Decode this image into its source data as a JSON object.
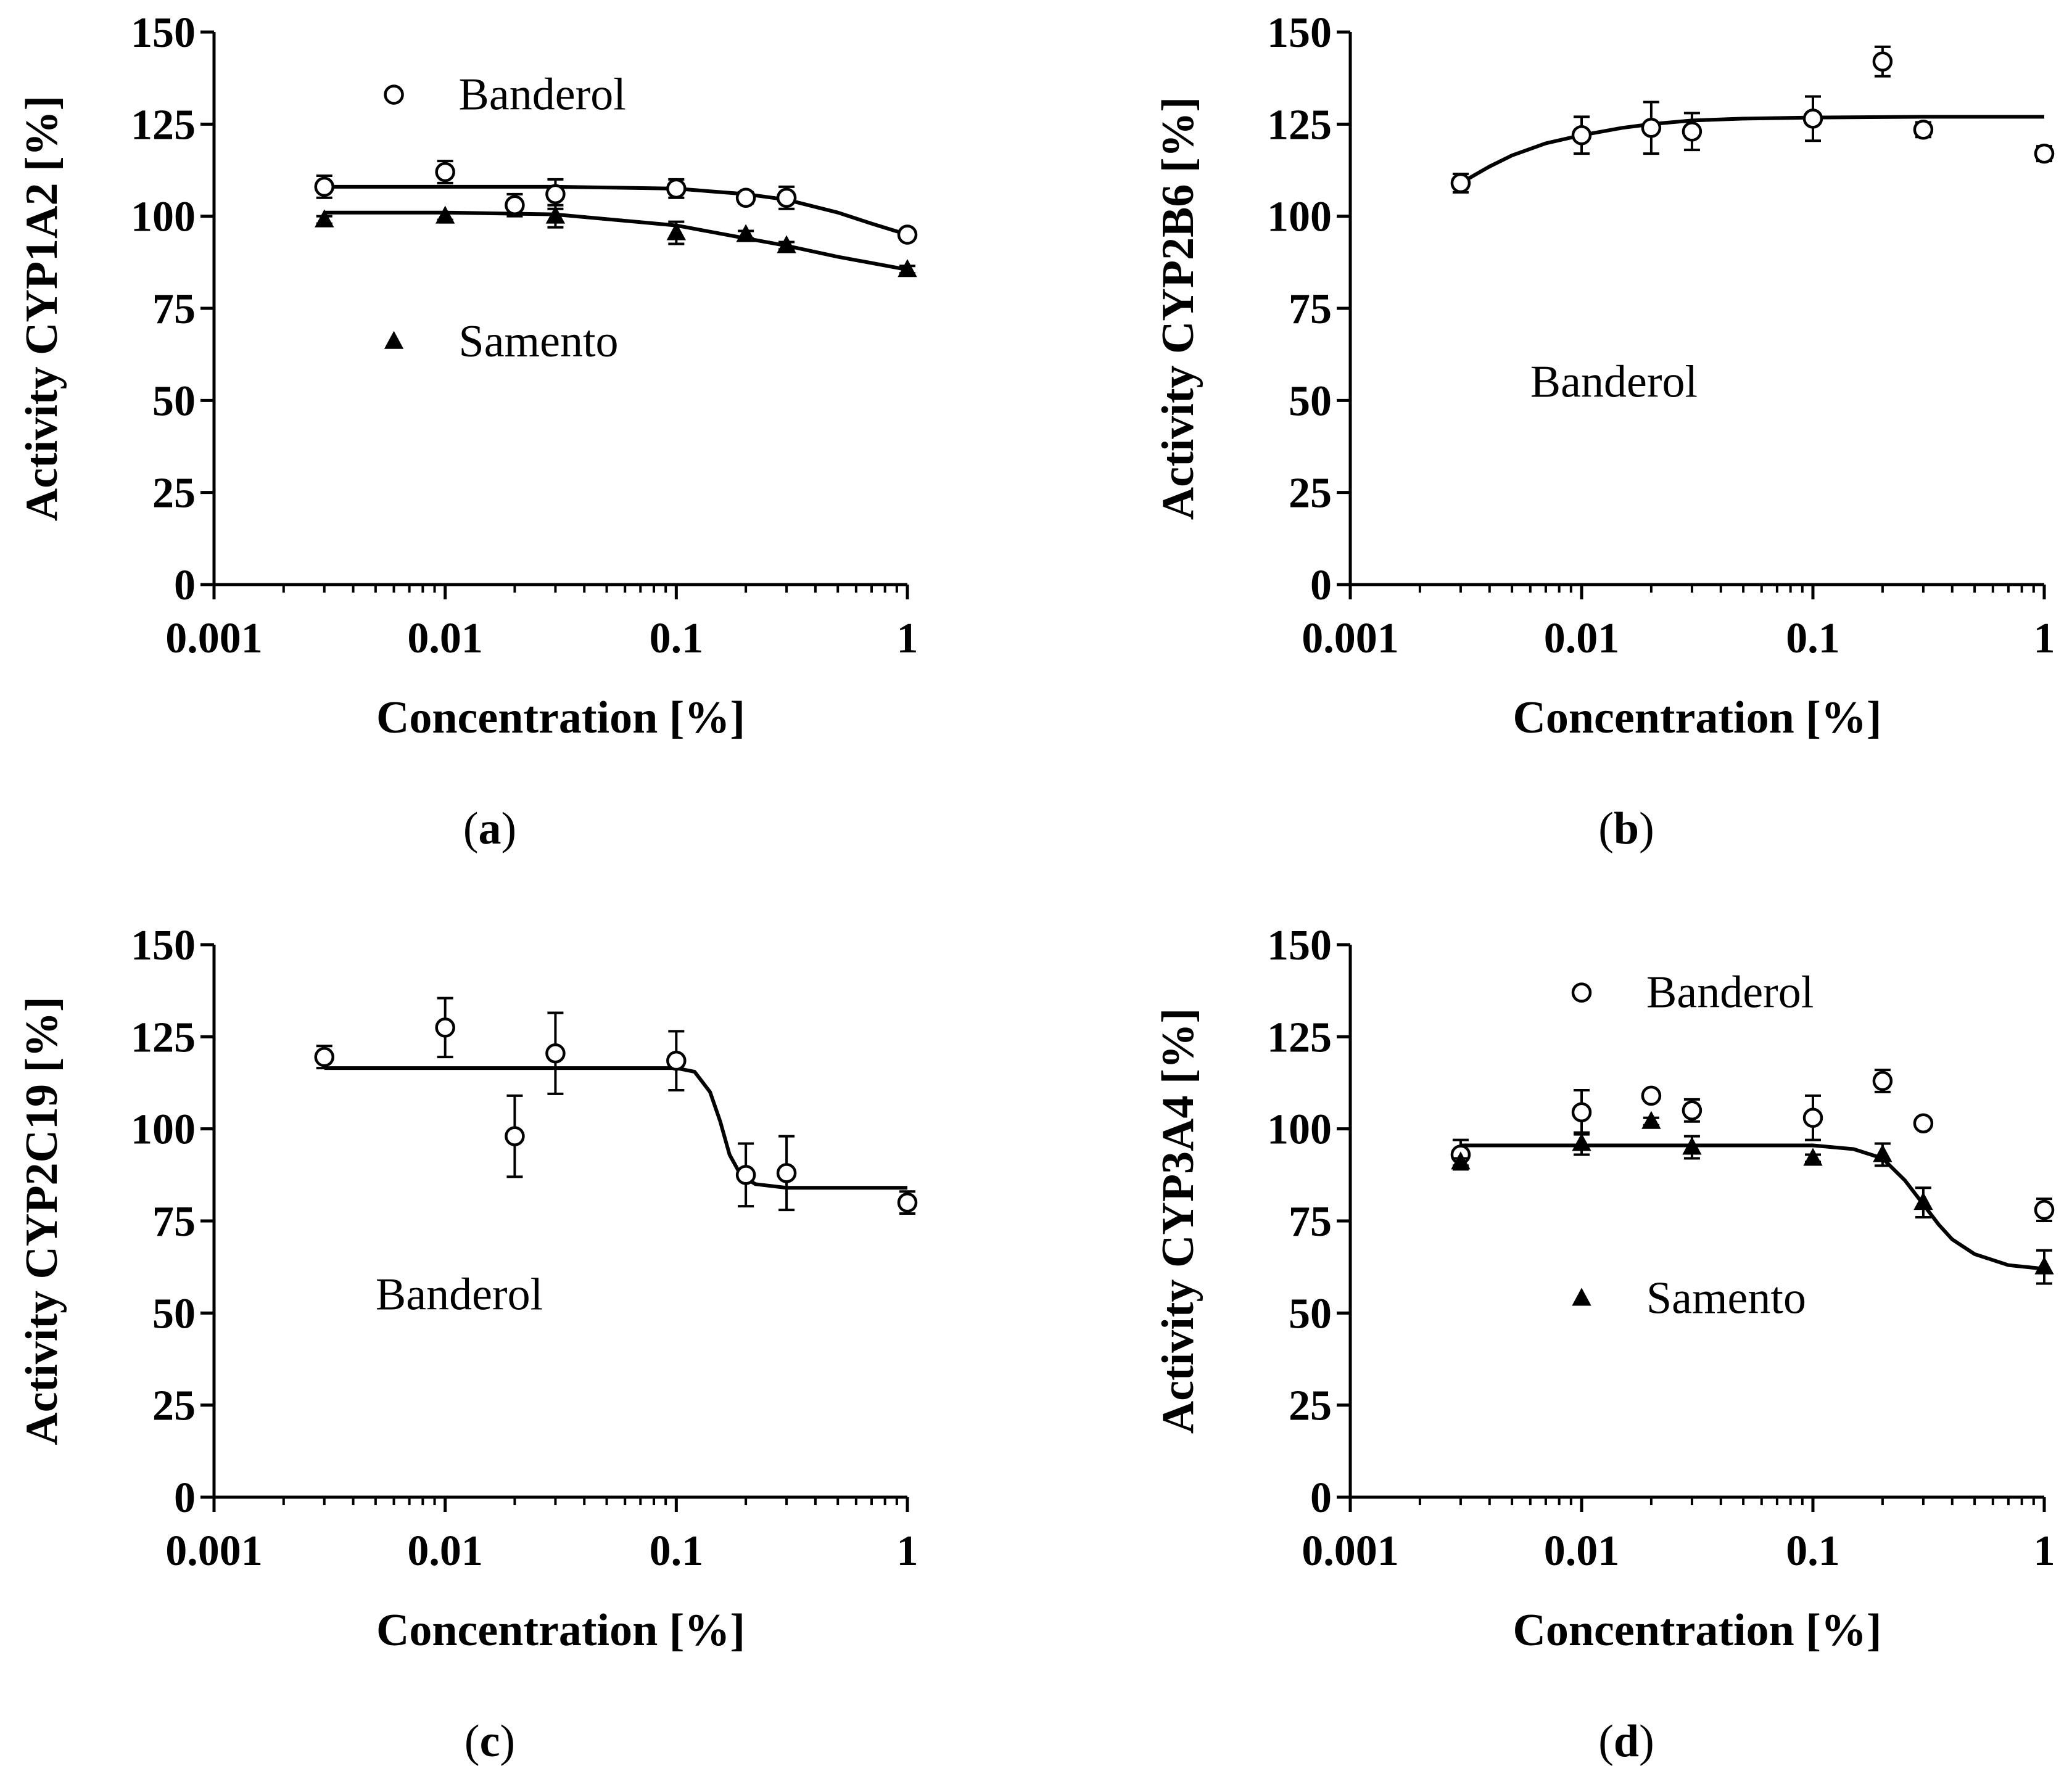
{
  "chart_data": [
    {
      "type": "scatter",
      "panel_label": "a",
      "xlabel": "Concentration [%]",
      "ylabel": "Activity CYP1A2 [%]",
      "xscale": "log",
      "xlim": [
        0.001,
        1
      ],
      "ylim": [
        0,
        150
      ],
      "x_ticks": [
        "0.001",
        "0.01",
        "0.1",
        "1"
      ],
      "y_ticks": [
        "0",
        "25",
        "50",
        "75",
        "100",
        "125",
        "150"
      ],
      "grid": false,
      "series": [
        {
          "name": "Banderol",
          "marker": "open-circle",
          "points": [
            {
              "x": 0.003,
              "y": 108,
              "err": 3
            },
            {
              "x": 0.01,
              "y": 112,
              "err": 3
            },
            {
              "x": 0.02,
              "y": 103,
              "err": 3
            },
            {
              "x": 0.03,
              "y": 106,
              "err": 4
            },
            {
              "x": 0.1,
              "y": 107.5,
              "err": 2.5
            },
            {
              "x": 0.2,
              "y": 105,
              "err": 1.5
            },
            {
              "x": 0.3,
              "y": 105,
              "err": 3
            },
            {
              "x": 1,
              "y": 95,
              "err": 1
            }
          ],
          "fit": [
            [
              0.003,
              108
            ],
            [
              0.01,
              108
            ],
            [
              0.03,
              108
            ],
            [
              0.1,
              107.5
            ],
            [
              0.2,
              106
            ],
            [
              0.3,
              104.5
            ],
            [
              0.5,
              101
            ],
            [
              0.7,
              98
            ],
            [
              1,
              95
            ]
          ]
        },
        {
          "name": "Samento",
          "marker": "filled-triangle",
          "points": [
            {
              "x": 0.003,
              "y": 99,
              "err": 1
            },
            {
              "x": 0.01,
              "y": 100,
              "err": 1
            },
            {
              "x": 0.03,
              "y": 100,
              "err": 3
            },
            {
              "x": 0.1,
              "y": 95.5,
              "err": 3
            },
            {
              "x": 0.2,
              "y": 95,
              "err": 1
            },
            {
              "x": 0.3,
              "y": 92,
              "err": 1
            },
            {
              "x": 1,
              "y": 85.5,
              "err": 1
            }
          ],
          "fit": [
            [
              0.003,
              101
            ],
            [
              0.01,
              101
            ],
            [
              0.03,
              100.5
            ],
            [
              0.1,
              97.5
            ],
            [
              0.2,
              94
            ],
            [
              0.3,
              92
            ],
            [
              0.5,
              89
            ],
            [
              1,
              85.5
            ]
          ]
        }
      ],
      "legend": [
        {
          "series": 0,
          "x": 0.006,
          "y": 133
        },
        {
          "series": 1,
          "x": 0.006,
          "y": 66
        }
      ]
    },
    {
      "type": "scatter",
      "panel_label": "b",
      "xlabel": "Concentration [%]",
      "ylabel": "Activity CYP2B6 [%]",
      "xscale": "log",
      "xlim": [
        0.001,
        1
      ],
      "ylim": [
        0,
        150
      ],
      "x_ticks": [
        "0.001",
        "0.01",
        "0.1",
        "1"
      ],
      "y_ticks": [
        "0",
        "25",
        "50",
        "75",
        "100",
        "125",
        "150"
      ],
      "grid": false,
      "series": [
        {
          "name": "Banderol",
          "marker": "open-circle",
          "points": [
            {
              "x": 0.003,
              "y": 109,
              "err": 2.5
            },
            {
              "x": 0.01,
              "y": 122,
              "err": 5
            },
            {
              "x": 0.02,
              "y": 124,
              "err": 7
            },
            {
              "x": 0.03,
              "y": 123,
              "err": 5
            },
            {
              "x": 0.1,
              "y": 126.5,
              "err": 6
            },
            {
              "x": 0.2,
              "y": 142,
              "err": 4
            },
            {
              "x": 0.3,
              "y": 123.5,
              "err": 2
            },
            {
              "x": 1,
              "y": 117,
              "err": 2
            }
          ],
          "fit": [
            [
              0.003,
              109
            ],
            [
              0.004,
              113.5
            ],
            [
              0.005,
              116.5
            ],
            [
              0.007,
              119.8
            ],
            [
              0.01,
              122
            ],
            [
              0.015,
              124
            ],
            [
              0.02,
              125
            ],
            [
              0.03,
              126
            ],
            [
              0.05,
              126.5
            ],
            [
              0.1,
              126.8
            ],
            [
              0.3,
              127
            ],
            [
              1,
              127
            ]
          ]
        }
      ],
      "legend": [
        {
          "series": 0,
          "x": 0.006,
          "y": 55,
          "text_only": true
        }
      ]
    },
    {
      "type": "scatter",
      "panel_label": "c",
      "xlabel": "Concentration [%]",
      "ylabel": "Activity CYP2C19 [%]",
      "xscale": "log",
      "xlim": [
        0.001,
        1
      ],
      "ylim": [
        0,
        150
      ],
      "x_ticks": [
        "0.001",
        "0.01",
        "0.1",
        "1"
      ],
      "y_ticks": [
        "0",
        "25",
        "50",
        "75",
        "100",
        "125",
        "150"
      ],
      "grid": false,
      "series": [
        {
          "name": "Banderol",
          "marker": "open-circle",
          "points": [
            {
              "x": 0.003,
              "y": 119.5,
              "err": 3
            },
            {
              "x": 0.01,
              "y": 127.5,
              "err": 8
            },
            {
              "x": 0.02,
              "y": 98,
              "err": 11
            },
            {
              "x": 0.03,
              "y": 120.5,
              "err": 11
            },
            {
              "x": 0.1,
              "y": 118.5,
              "err": 8
            },
            {
              "x": 0.2,
              "y": 87.5,
              "err": 8.5
            },
            {
              "x": 0.3,
              "y": 88,
              "err": 10
            },
            {
              "x": 1,
              "y": 80,
              "err": 3
            }
          ],
          "fit": [
            [
              0.003,
              116.5
            ],
            [
              0.1,
              116.5
            ],
            [
              0.12,
              115.5
            ],
            [
              0.14,
              110
            ],
            [
              0.155,
              102
            ],
            [
              0.17,
              93
            ],
            [
              0.19,
              87.5
            ],
            [
              0.22,
              85
            ],
            [
              0.3,
              84
            ],
            [
              1,
              84
            ]
          ]
        }
      ],
      "legend": [
        {
          "series": 0,
          "x": 0.005,
          "y": 55,
          "text_only": true
        }
      ]
    },
    {
      "type": "scatter",
      "panel_label": "d",
      "xlabel": "Concentration [%]",
      "ylabel": "Activity CYP3A4 [%]",
      "xscale": "log",
      "xlim": [
        0.001,
        1
      ],
      "ylim": [
        0,
        150
      ],
      "x_ticks": [
        "0.001",
        "0.01",
        "0.1",
        "1"
      ],
      "y_ticks": [
        "0",
        "25",
        "50",
        "75",
        "100",
        "125",
        "150"
      ],
      "grid": false,
      "series": [
        {
          "name": "Banderol",
          "marker": "open-circle",
          "points": [
            {
              "x": 0.003,
              "y": 93,
              "err": 4
            },
            {
              "x": 0.01,
              "y": 104.5,
              "err": 6
            },
            {
              "x": 0.02,
              "y": 109,
              "err": 1
            },
            {
              "x": 0.03,
              "y": 105,
              "err": 3
            },
            {
              "x": 0.1,
              "y": 103,
              "err": 6
            },
            {
              "x": 0.2,
              "y": 113,
              "err": 3
            },
            {
              "x": 0.3,
              "y": 101.5,
              "err": 1
            },
            {
              "x": 1,
              "y": 78,
              "err": 3
            }
          ]
        },
        {
          "name": "Samento",
          "marker": "filled-triangle",
          "points": [
            {
              "x": 0.003,
              "y": 91,
              "err": 1
            },
            {
              "x": 0.01,
              "y": 96,
              "err": 3
            },
            {
              "x": 0.02,
              "y": 102,
              "err": 1
            },
            {
              "x": 0.03,
              "y": 95,
              "err": 3
            },
            {
              "x": 0.1,
              "y": 92,
              "err": 1
            },
            {
              "x": 0.2,
              "y": 93,
              "err": 3
            },
            {
              "x": 0.3,
              "y": 80,
              "err": 4
            },
            {
              "x": 1,
              "y": 62.5,
              "err": 4.5
            }
          ],
          "fit": [
            [
              0.003,
              95.5
            ],
            [
              0.1,
              95.5
            ],
            [
              0.15,
              94.5
            ],
            [
              0.2,
              92
            ],
            [
              0.25,
              86
            ],
            [
              0.3,
              79.5
            ],
            [
              0.35,
              74
            ],
            [
              0.4,
              70
            ],
            [
              0.5,
              66
            ],
            [
              0.7,
              63
            ],
            [
              1,
              62
            ]
          ]
        }
      ],
      "legend": [
        {
          "series": 0,
          "x": 0.01,
          "y": 137
        },
        {
          "series": 1,
          "x": 0.01,
          "y": 54
        }
      ]
    }
  ]
}
